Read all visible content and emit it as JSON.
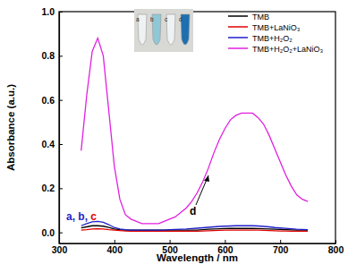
{
  "chart_data": {
    "type": "line",
    "x_label": "Wavelength / nm",
    "y_label": "Absorbance (a.u.)",
    "x": [
      340,
      350,
      360,
      370,
      380,
      390,
      400,
      410,
      420,
      430,
      440,
      450,
      460,
      470,
      480,
      490,
      500,
      510,
      520,
      530,
      540,
      550,
      560,
      570,
      580,
      590,
      600,
      610,
      620,
      630,
      640,
      650,
      660,
      670,
      680,
      690,
      700,
      710,
      720,
      730,
      740,
      750
    ],
    "series": [
      {
        "name": "TMB",
        "color": "#000000",
        "values": [
          0.02,
          0.025,
          0.03,
          0.03,
          0.028,
          0.022,
          0.015,
          0.012,
          0.01,
          0.01,
          0.01,
          0.01,
          0.01,
          0.01,
          0.01,
          0.01,
          0.01,
          0.01,
          0.01,
          0.01,
          0.01,
          0.01,
          0.012,
          0.014,
          0.015,
          0.016,
          0.017,
          0.018,
          0.018,
          0.018,
          0.018,
          0.018,
          0.017,
          0.016,
          0.015,
          0.014,
          0.013,
          0.012,
          0.011,
          0.01,
          0.01,
          0.01
        ]
      },
      {
        "name": "TMB+LaNiO₃",
        "color": "#e00000",
        "values": [
          0.01,
          0.012,
          0.015,
          0.016,
          0.015,
          0.012,
          0.01,
          0.008,
          0.006,
          0.005,
          0.005,
          0.005,
          0.005,
          0.005,
          0.005,
          0.005,
          0.005,
          0.005,
          0.005,
          0.005,
          0.005,
          0.005,
          0.006,
          0.007,
          0.008,
          0.009,
          0.01,
          0.01,
          0.01,
          0.01,
          0.01,
          0.01,
          0.01,
          0.009,
          0.008,
          0.007,
          0.006,
          0.006,
          0.005,
          0.005,
          0.005,
          0.005
        ]
      },
      {
        "name": "TMB+H₂O₂",
        "color": "#1f1fc8",
        "values": [
          0.03,
          0.04,
          0.048,
          0.05,
          0.046,
          0.035,
          0.022,
          0.015,
          0.012,
          0.01,
          0.01,
          0.01,
          0.01,
          0.01,
          0.01,
          0.01,
          0.012,
          0.013,
          0.014,
          0.015,
          0.017,
          0.019,
          0.021,
          0.023,
          0.025,
          0.027,
          0.028,
          0.029,
          0.03,
          0.03,
          0.03,
          0.03,
          0.029,
          0.027,
          0.025,
          0.022,
          0.02,
          0.018,
          0.016,
          0.014,
          0.013,
          0.012
        ]
      },
      {
        "name": "TMB+H₂O₂+LaNiO₃",
        "color": "#e020e0",
        "values": [
          0.37,
          0.62,
          0.82,
          0.88,
          0.8,
          0.55,
          0.3,
          0.15,
          0.08,
          0.06,
          0.05,
          0.04,
          0.04,
          0.04,
          0.04,
          0.05,
          0.06,
          0.07,
          0.09,
          0.11,
          0.14,
          0.18,
          0.23,
          0.29,
          0.36,
          0.42,
          0.47,
          0.51,
          0.53,
          0.54,
          0.54,
          0.54,
          0.52,
          0.49,
          0.44,
          0.38,
          0.32,
          0.26,
          0.21,
          0.17,
          0.15,
          0.14
        ]
      }
    ],
    "xlim": [
      300,
      800
    ],
    "xticks": [
      300,
      400,
      500,
      600,
      700,
      800
    ],
    "ylim": [
      -0.05,
      1.0
    ],
    "yticks": [
      {
        "value": 0,
        "label": "0.0"
      },
      0.2,
      0.4,
      0.6,
      0.8,
      {
        "value": 1,
        "label": "1.0"
      }
    ],
    "grid": false,
    "legend": "upper right",
    "annotations": [
      {
        "text": "a, b,",
        "color": "#1f1fc8"
      },
      {
        "text": "c",
        "color": "#e00000"
      },
      {
        "text": "d",
        "color": "#000000"
      }
    ],
    "inset_labels": [
      "a",
      "b",
      "c",
      "d"
    ]
  }
}
